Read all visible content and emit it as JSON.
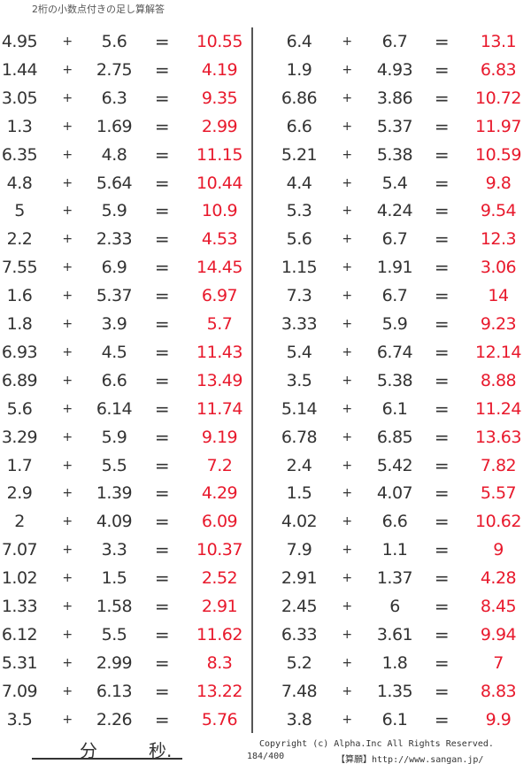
{
  "title": "2桁の小数点付きの足し算解答",
  "operator": "+",
  "equals": "=",
  "left_problems": [
    [
      "4.95",
      "5.6",
      "10.55"
    ],
    [
      "1.44",
      "2.75",
      "4.19"
    ],
    [
      "3.05",
      "6.3",
      "9.35"
    ],
    [
      "1.3",
      "1.69",
      "2.99"
    ],
    [
      "6.35",
      "4.8",
      "11.15"
    ],
    [
      "4.8",
      "5.64",
      "10.44"
    ],
    [
      "5",
      "5.9",
      "10.9"
    ],
    [
      "2.2",
      "2.33",
      "4.53"
    ],
    [
      "7.55",
      "6.9",
      "14.45"
    ],
    [
      "1.6",
      "5.37",
      "6.97"
    ],
    [
      "1.8",
      "3.9",
      "5.7"
    ],
    [
      "6.93",
      "4.5",
      "11.43"
    ],
    [
      "6.89",
      "6.6",
      "13.49"
    ],
    [
      "5.6",
      "6.14",
      "11.74"
    ],
    [
      "3.29",
      "5.9",
      "9.19"
    ],
    [
      "1.7",
      "5.5",
      "7.2"
    ],
    [
      "2.9",
      "1.39",
      "4.29"
    ],
    [
      "2",
      "4.09",
      "6.09"
    ],
    [
      "7.07",
      "3.3",
      "10.37"
    ],
    [
      "1.02",
      "1.5",
      "2.52"
    ],
    [
      "1.33",
      "1.58",
      "2.91"
    ],
    [
      "6.12",
      "5.5",
      "11.62"
    ],
    [
      "5.31",
      "2.99",
      "8.3"
    ],
    [
      "7.09",
      "6.13",
      "13.22"
    ],
    [
      "3.5",
      "2.26",
      "5.76"
    ]
  ],
  "right_problems": [
    [
      "6.4",
      "6.7",
      "13.1"
    ],
    [
      "1.9",
      "4.93",
      "6.83"
    ],
    [
      "6.86",
      "3.86",
      "10.72"
    ],
    [
      "6.6",
      "5.37",
      "11.97"
    ],
    [
      "5.21",
      "5.38",
      "10.59"
    ],
    [
      "4.4",
      "5.4",
      "9.8"
    ],
    [
      "5.3",
      "4.24",
      "9.54"
    ],
    [
      "5.6",
      "6.7",
      "12.3"
    ],
    [
      "1.15",
      "1.91",
      "3.06"
    ],
    [
      "7.3",
      "6.7",
      "14"
    ],
    [
      "3.33",
      "5.9",
      "9.23"
    ],
    [
      "5.4",
      "6.74",
      "12.14"
    ],
    [
      "3.5",
      "5.38",
      "8.88"
    ],
    [
      "5.14",
      "6.1",
      "11.24"
    ],
    [
      "6.78",
      "6.85",
      "13.63"
    ],
    [
      "2.4",
      "5.42",
      "7.82"
    ],
    [
      "1.5",
      "4.07",
      "5.57"
    ],
    [
      "4.02",
      "6.6",
      "10.62"
    ],
    [
      "7.9",
      "1.1",
      "9"
    ],
    [
      "2.91",
      "1.37",
      "4.28"
    ],
    [
      "2.45",
      "6",
      "8.45"
    ],
    [
      "6.33",
      "3.61",
      "9.94"
    ],
    [
      "5.2",
      "1.8",
      "7"
    ],
    [
      "7.48",
      "1.35",
      "8.83"
    ],
    [
      "3.8",
      "6.1",
      "9.9"
    ]
  ],
  "footer": {
    "minutes_label": "分",
    "seconds_label": "秒.",
    "copyright": "Copyright (c)  Alpha.Inc All Rights Reserved.",
    "page_number": "184/400",
    "site": "【算願】http://www.sangan.jp/"
  },
  "colors": {
    "answer": "#e8192c",
    "text": "#333333"
  }
}
